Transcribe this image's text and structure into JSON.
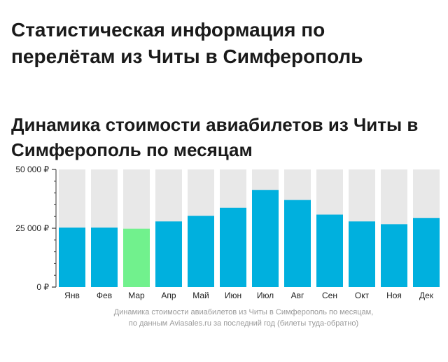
{
  "page": {
    "title": "Статистическая информация по перелётам из Читы в Симферополь"
  },
  "section": {
    "title": "Динамика стоимости авиабилетов из Читы в Симферополь по месяцам"
  },
  "caption": {
    "line1": "Динамика стоимости авиабилетов из Читы в Симферополь по месяцам,",
    "line2": "по данным Aviasales.ru за последний год (билеты туда-обратно)"
  },
  "chart_data": {
    "type": "bar",
    "categories": [
      "Янв",
      "Фев",
      "Мар",
      "Апр",
      "Май",
      "Июн",
      "Июл",
      "Авг",
      "Сен",
      "Окт",
      "Ноя",
      "Дек"
    ],
    "values": [
      25300,
      25300,
      24800,
      27900,
      30300,
      33700,
      41300,
      37000,
      30800,
      27900,
      26700,
      29400
    ],
    "highlighted_category": "Мар",
    "ylim": [
      0,
      50000
    ],
    "yticks": [
      {
        "value": 0,
        "label": "0 ₽"
      },
      {
        "value": 25000,
        "label": "25 000 ₽"
      },
      {
        "value": 50000,
        "label": "50 000 ₽"
      }
    ],
    "colors": {
      "bar": "#00b0de",
      "highlight": "#71f18d",
      "track": "#e8e8e8",
      "axis": "#333333"
    }
  }
}
